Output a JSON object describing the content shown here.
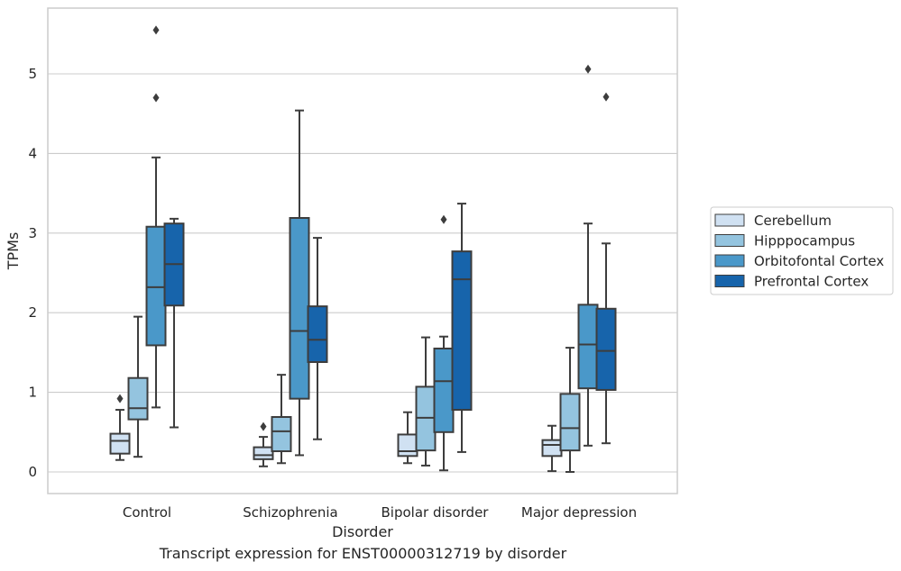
{
  "caption": "Transcript expression for ENST00000312719 by disorder",
  "chart_data": {
    "type": "box",
    "xlabel": "Disorder",
    "ylabel": "TPMs",
    "ylim": [
      -0.27,
      5.83
    ],
    "yticks": [
      0,
      1,
      2,
      3,
      4,
      5
    ],
    "grid": "horizontal",
    "legend_position": "right",
    "categories": [
      "Control",
      "Schizophrenia",
      "Bipolar disorder",
      "Major depression"
    ],
    "series": [
      {
        "name": "Cerebellum",
        "color": "#d0e1f2",
        "boxes": [
          {
            "whisker_low": 0.15,
            "q1": 0.23,
            "median": 0.39,
            "q3": 0.48,
            "whisker_high": 0.78,
            "outliers": [
              0.92
            ]
          },
          {
            "whisker_low": 0.07,
            "q1": 0.16,
            "median": 0.21,
            "q3": 0.31,
            "whisker_high": 0.44,
            "outliers": [
              0.57
            ]
          },
          {
            "whisker_low": 0.11,
            "q1": 0.2,
            "median": 0.26,
            "q3": 0.47,
            "whisker_high": 0.75,
            "outliers": []
          },
          {
            "whisker_low": 0.01,
            "q1": 0.2,
            "median": 0.34,
            "q3": 0.4,
            "whisker_high": 0.58,
            "outliers": []
          }
        ]
      },
      {
        "name": "Hipppocampus",
        "color": "#94c4df",
        "boxes": [
          {
            "whisker_low": 0.19,
            "q1": 0.66,
            "median": 0.8,
            "q3": 1.18,
            "whisker_high": 1.95,
            "outliers": []
          },
          {
            "whisker_low": 0.11,
            "q1": 0.26,
            "median": 0.51,
            "q3": 0.69,
            "whisker_high": 1.22,
            "outliers": []
          },
          {
            "whisker_low": 0.08,
            "q1": 0.27,
            "median": 0.68,
            "q3": 1.07,
            "whisker_high": 1.69,
            "outliers": []
          },
          {
            "whisker_low": 0.0,
            "q1": 0.27,
            "median": 0.55,
            "q3": 0.98,
            "whisker_high": 1.56,
            "outliers": []
          }
        ]
      },
      {
        "name": "Orbitofontal Cortex",
        "color": "#4a98c9",
        "boxes": [
          {
            "whisker_low": 0.81,
            "q1": 1.59,
            "median": 2.32,
            "q3": 3.08,
            "whisker_high": 3.95,
            "outliers": [
              4.7,
              5.55
            ]
          },
          {
            "whisker_low": 0.21,
            "q1": 0.92,
            "median": 1.77,
            "q3": 3.19,
            "whisker_high": 4.54,
            "outliers": []
          },
          {
            "whisker_low": 0.02,
            "q1": 0.5,
            "median": 1.14,
            "q3": 1.55,
            "whisker_high": 1.7,
            "outliers": [
              3.17
            ]
          },
          {
            "whisker_low": 0.33,
            "q1": 1.05,
            "median": 1.6,
            "q3": 2.1,
            "whisker_high": 3.12,
            "outliers": [
              5.06
            ]
          }
        ]
      },
      {
        "name": "Prefrontal Cortex",
        "color": "#1764ab",
        "boxes": [
          {
            "whisker_low": 0.56,
            "q1": 2.09,
            "median": 2.61,
            "q3": 3.12,
            "whisker_high": 3.18,
            "outliers": []
          },
          {
            "whisker_low": 0.41,
            "q1": 1.38,
            "median": 1.66,
            "q3": 2.08,
            "whisker_high": 2.94,
            "outliers": []
          },
          {
            "whisker_low": 0.25,
            "q1": 0.78,
            "median": 2.42,
            "q3": 2.77,
            "whisker_high": 3.37,
            "outliers": []
          },
          {
            "whisker_low": 0.36,
            "q1": 1.03,
            "median": 1.52,
            "q3": 2.05,
            "whisker_high": 2.87,
            "outliers": [
              4.71
            ]
          }
        ]
      }
    ]
  }
}
